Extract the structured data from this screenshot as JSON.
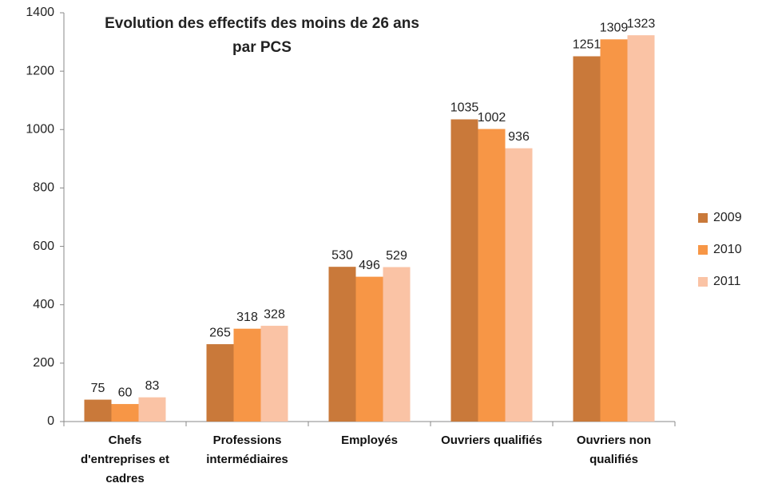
{
  "chart_data": {
    "type": "bar",
    "title": [
      "Evolution des effectifs des moins de 26 ans",
      "par PCS"
    ],
    "categories": [
      "Chefs d'entreprises et cadres",
      "Professions intermédiaires",
      "Employés",
      "Ouvriers qualifiés",
      "Ouvriers non qualifiés"
    ],
    "series": [
      {
        "name": "2009",
        "color": "#c9793a",
        "values": [
          75,
          265,
          530,
          1035,
          1251
        ]
      },
      {
        "name": "2010",
        "color": "#f79646",
        "values": [
          60,
          318,
          496,
          1002,
          1309
        ]
      },
      {
        "name": "2011",
        "color": "#fac3a5",
        "values": [
          83,
          328,
          529,
          936,
          1323
        ]
      }
    ],
    "ylim": [
      0,
      1400
    ],
    "yticks": [
      0,
      200,
      400,
      600,
      800,
      1000,
      1200,
      1400
    ],
    "grid": false,
    "legend": "right"
  }
}
